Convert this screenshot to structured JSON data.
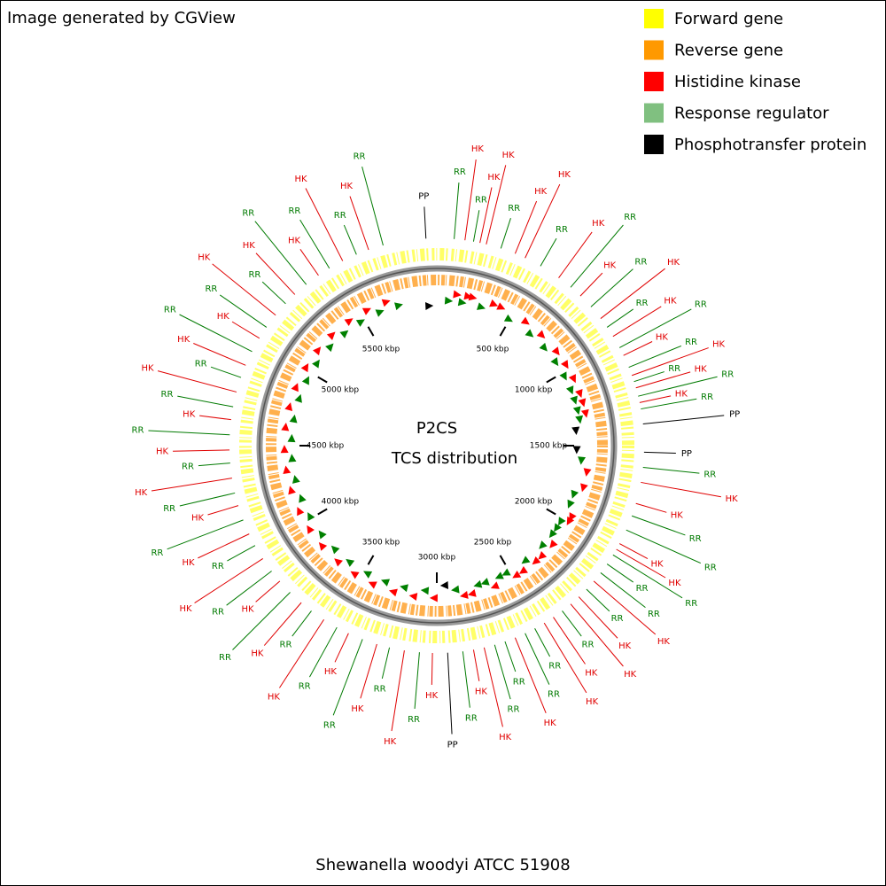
{
  "header": {
    "title": "Image generated by CGView"
  },
  "legend": [
    {
      "label": "Forward gene",
      "color": "#ffff00"
    },
    {
      "label": "Reverse gene",
      "color": "#ff9900"
    },
    {
      "label": "Histidine kinase",
      "color": "#ff0000"
    },
    {
      "label": "Response regulator",
      "color": "#80c080"
    },
    {
      "label": "Phosphotransfer protein",
      "color": "#000000"
    }
  ],
  "map": {
    "center_title": "P2CS",
    "center_subtitle": "TCS distribution",
    "caption": "Shewanella woodyi ATCC 51908",
    "range": [
      0,
      6000
    ],
    "ticks": [
      {
        "value": 500,
        "label": "500 kbp"
      },
      {
        "value": 1000,
        "label": "1000 kbp"
      },
      {
        "value": 1500,
        "label": "1500 kbp"
      },
      {
        "value": 2000,
        "label": "2000 kbp"
      },
      {
        "value": 2500,
        "label": "2500 kbp"
      },
      {
        "value": 3000,
        "label": "3000 kbp"
      },
      {
        "value": 3500,
        "label": "3500 kbp"
      },
      {
        "value": 4000,
        "label": "4000 kbp"
      },
      {
        "value": 4500,
        "label": "4500 kbp"
      },
      {
        "value": 5000,
        "label": "5000 kbp"
      },
      {
        "value": 5500,
        "label": "5500 kbp"
      }
    ],
    "label_colors": {
      "HK": "#e00000",
      "RR": "#007a00",
      "PP": "#000000"
    },
    "features": {
      "labels": [
        "PP",
        "RR",
        "HK",
        "RR",
        "HK",
        "HK",
        "RR",
        "HK",
        "HK",
        "RR",
        "HK",
        "RR",
        "HK",
        "RR",
        "HK",
        "RR",
        "HK",
        "RR",
        "HK",
        "RR",
        "HK",
        "RR",
        "HK",
        "RR",
        "HK",
        "RR",
        "PP",
        "PP",
        "RR",
        "HK",
        "HK",
        "RR",
        "RR",
        "HK",
        "HK",
        "RR",
        "RR",
        "RR",
        "HK",
        "RR",
        "HK",
        "HK",
        "RR",
        "HK",
        "HK",
        "RR",
        "RR",
        "HK",
        "RR",
        "RR",
        "HK",
        "HK",
        "RR",
        "PP",
        "HK",
        "RR",
        "HK",
        "RR",
        "HK",
        "RR",
        "HK",
        "RR",
        "HK",
        "RR",
        "HK",
        "RR",
        "HK",
        "RR",
        "HK",
        "RR",
        "HK",
        "RR",
        "HK",
        "RR",
        "HK",
        "RR",
        "HK",
        "RR",
        "HK",
        "RR",
        "HK",
        "RR",
        "HK",
        "RR",
        "HK",
        "RR",
        "HK",
        "RR",
        "HK",
        "RR",
        "HK",
        "RR",
        "HK",
        "RR",
        "HK",
        "RR"
      ],
      "positions": [
        5950,
        80,
        130,
        170,
        200,
        230,
        300,
        370,
        420,
        500,
        600,
        670,
        730,
        800,
        870,
        920,
        970,
        1030,
        1070,
        1130,
        1170,
        1200,
        1230,
        1270,
        1300,
        1330,
        1400,
        1530,
        1600,
        1670,
        1770,
        1830,
        1900,
        1970,
        2000,
        2030,
        2080,
        2130,
        2180,
        2230,
        2280,
        2330,
        2380,
        2430,
        2480,
        2530,
        2580,
        2630,
        2680,
        2730,
        2780,
        2830,
        2880,
        2950,
        3020,
        3080,
        3150,
        3220,
        3280,
        3350,
        3420,
        3480,
        3550,
        3620,
        3680,
        3750,
        3820,
        3880,
        3950,
        4020,
        4080,
        4150,
        4220,
        4280,
        4350,
        4420,
        4480,
        4550,
        4620,
        4680,
        4750,
        4820,
        4880,
        4950,
        5020,
        5080,
        5150,
        5220,
        5280,
        5350,
        5420,
        5480,
        5550,
        5620,
        5680,
        5750
      ]
    }
  }
}
